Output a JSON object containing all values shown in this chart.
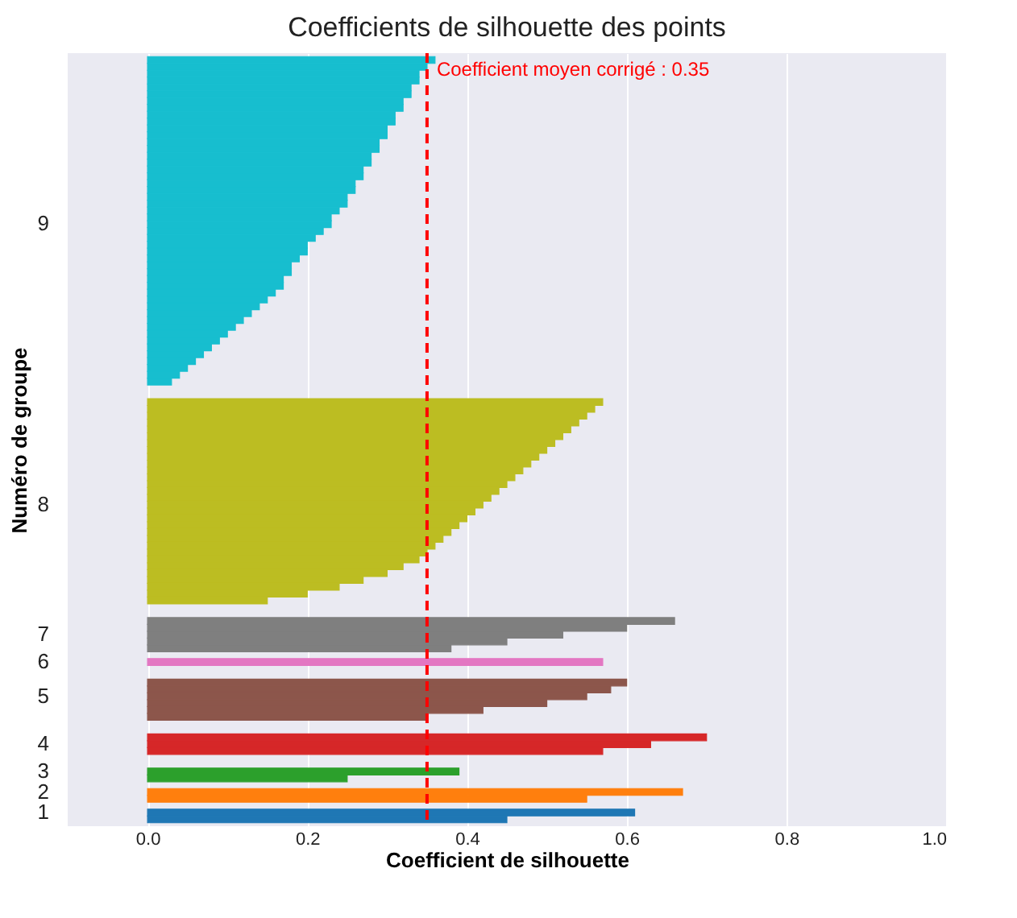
{
  "chart_data": {
    "type": "bar",
    "orientation": "horizontal",
    "title": "Coefficients de silhouette des points",
    "xlabel": "Coefficient de silhouette",
    "ylabel": "Numéro de groupe",
    "categories": [
      null,
      null,
      null,
      null,
      null,
      null,
      null,
      null,
      null,
      null,
      null,
      null,
      null,
      null,
      null,
      null,
      null,
      null,
      null,
      null,
      null,
      null,
      null,
      null,
      "9",
      null,
      null,
      null,
      null,
      null,
      null,
      null,
      null,
      null,
      null,
      null,
      null,
      null,
      null,
      null,
      null,
      null,
      null,
      null,
      null,
      null,
      null,
      null,
      null,
      null,
      null,
      null,
      null,
      null,
      null,
      null,
      null,
      null,
      null,
      null,
      null,
      null,
      null,
      null,
      null,
      "8",
      null,
      null,
      null,
      null,
      null,
      null,
      null,
      null,
      null,
      null,
      null,
      null,
      null,
      null,
      null,
      null,
      null,
      null,
      "7",
      null,
      null,
      null,
      "6",
      null,
      null,
      null,
      null,
      "5",
      null,
      null,
      null,
      null,
      null,
      null,
      "4",
      null,
      null,
      null,
      "3",
      null,
      null,
      "2",
      null,
      null,
      "1",
      null
    ],
    "values": [
      0.36,
      0.35,
      0.34,
      0.34,
      0.33,
      0.33,
      0.32,
      0.32,
      0.31,
      0.31,
      0.3,
      0.3,
      0.29,
      0.29,
      0.28,
      0.28,
      0.27,
      0.27,
      0.26,
      0.26,
      0.25,
      0.25,
      0.24,
      0.23,
      0.23,
      0.22,
      0.21,
      0.2,
      0.2,
      0.19,
      0.18,
      0.18,
      0.17,
      0.17,
      0.16,
      0.15,
      0.14,
      0.13,
      0.12,
      0.11,
      0.1,
      0.09,
      0.08,
      0.07,
      0.06,
      0.05,
      0.04,
      0.03,
      null,
      null,
      0.57,
      0.56,
      0.55,
      0.54,
      0.53,
      0.52,
      0.51,
      0.5,
      0.49,
      0.48,
      0.47,
      0.46,
      0.45,
      0.44,
      0.43,
      0.42,
      0.41,
      0.4,
      0.39,
      0.38,
      0.37,
      0.36,
      0.35,
      0.34,
      0.32,
      0.3,
      0.27,
      0.24,
      0.2,
      0.15,
      null,
      null,
      0.66,
      0.6,
      0.52,
      0.45,
      0.38,
      null,
      0.57,
      null,
      null,
      0.6,
      0.58,
      0.55,
      0.5,
      0.42,
      0.35,
      null,
      null,
      0.7,
      0.63,
      0.57,
      null,
      null,
      0.39,
      0.25,
      null,
      0.67,
      0.55,
      null,
      0.61,
      0.45
    ],
    "colors": [
      "#17becf",
      "#17becf",
      "#17becf",
      "#17becf",
      "#17becf",
      "#17becf",
      "#17becf",
      "#17becf",
      "#17becf",
      "#17becf",
      "#17becf",
      "#17becf",
      "#17becf",
      "#17becf",
      "#17becf",
      "#17becf",
      "#17becf",
      "#17becf",
      "#17becf",
      "#17becf",
      "#17becf",
      "#17becf",
      "#17becf",
      "#17becf",
      "#17becf",
      "#17becf",
      "#17becf",
      "#17becf",
      "#17becf",
      "#17becf",
      "#17becf",
      "#17becf",
      "#17becf",
      "#17becf",
      "#17becf",
      "#17becf",
      "#17becf",
      "#17becf",
      "#17becf",
      "#17becf",
      "#17becf",
      "#17becf",
      "#17becf",
      "#17becf",
      "#17becf",
      "#17becf",
      "#17becf",
      "#17becf",
      null,
      null,
      "#bcbd22",
      "#bcbd22",
      "#bcbd22",
      "#bcbd22",
      "#bcbd22",
      "#bcbd22",
      "#bcbd22",
      "#bcbd22",
      "#bcbd22",
      "#bcbd22",
      "#bcbd22",
      "#bcbd22",
      "#bcbd22",
      "#bcbd22",
      "#bcbd22",
      "#bcbd22",
      "#bcbd22",
      "#bcbd22",
      "#bcbd22",
      "#bcbd22",
      "#bcbd22",
      "#bcbd22",
      "#bcbd22",
      "#bcbd22",
      "#bcbd22",
      "#bcbd22",
      "#bcbd22",
      "#bcbd22",
      "#bcbd22",
      "#bcbd22",
      null,
      null,
      "#7f7f7f",
      "#7f7f7f",
      "#7f7f7f",
      "#7f7f7f",
      "#7f7f7f",
      null,
      "#e377c2",
      null,
      null,
      "#8c564b",
      "#8c564b",
      "#8c564b",
      "#8c564b",
      "#8c564b",
      "#8c564b",
      null,
      null,
      "#d62728",
      "#d62728",
      "#d62728",
      null,
      null,
      "#2ca02c",
      "#2ca02c",
      null,
      "#ff7f0e",
      "#ff7f0e",
      null,
      "#1f77b4",
      "#1f77b4"
    ],
    "xlim": [
      -0.1,
      1.0
    ],
    "xticks": [
      {
        "value": 0,
        "label": "0.0"
      },
      0.2,
      0.4,
      0.6,
      0.8,
      {
        "value": 1,
        "label": "1.0"
      }
    ],
    "grid": "x",
    "ref_lines": [
      {
        "axis": "x",
        "value": 0.35,
        "label": "Coefficient moyen corrigé : 0.35",
        "color": "#ff0000",
        "line_style": "dashed"
      }
    ]
  }
}
